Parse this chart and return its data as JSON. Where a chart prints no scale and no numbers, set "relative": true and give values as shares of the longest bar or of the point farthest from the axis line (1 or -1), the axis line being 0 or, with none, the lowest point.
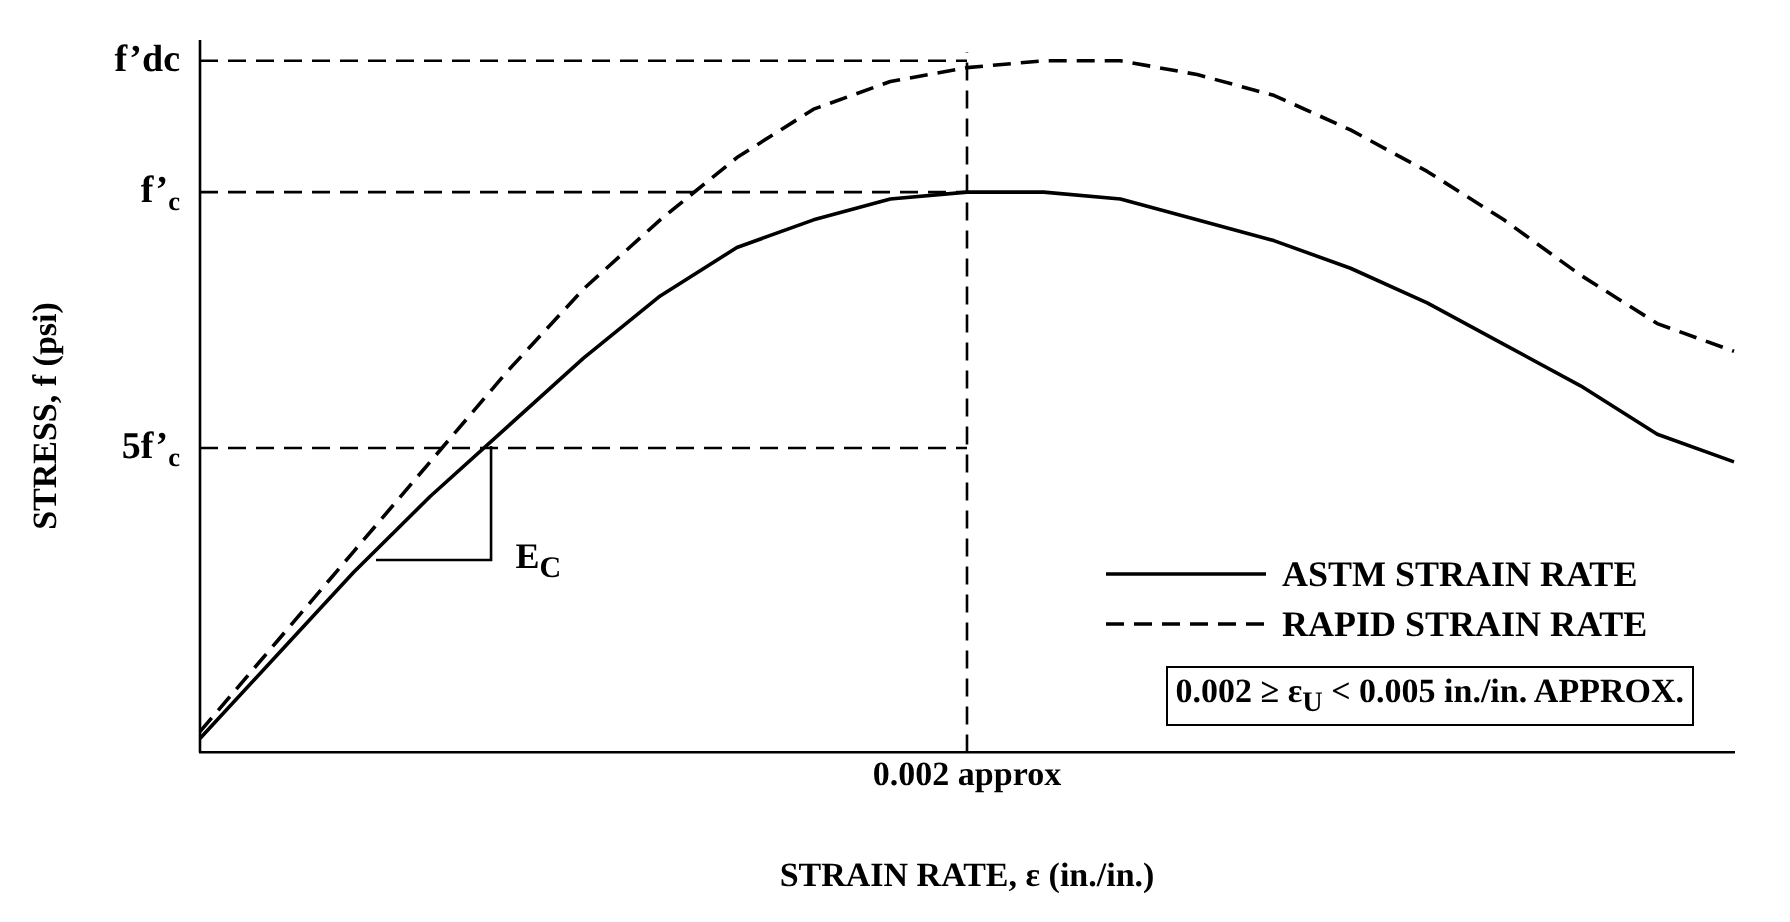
{
  "chart_data": {
    "type": "line",
    "xlabel": "STRAIN RATE, ε (in./in.)",
    "ylabel": "STRESS, f (psi)",
    "categories": [
      null,
      null,
      null,
      null,
      null,
      null,
      null,
      null,
      null,
      null,
      null,
      null,
      null,
      null,
      null,
      null,
      null,
      null,
      null,
      null,
      null
    ],
    "relative": true,
    "series": [
      {
        "name": "ASTM STRAIN RATE",
        "color": "#000000",
        "line_style": "solid",
        "values": [
          0.02,
          0.14,
          0.26,
          0.37,
          0.47,
          0.57,
          0.66,
          0.73,
          0.77,
          0.8,
          0.81,
          0.81,
          0.8,
          0.77,
          0.74,
          0.7,
          0.65,
          0.59,
          0.53,
          0.46,
          0.42
        ]
      },
      {
        "name": "RAPID STRAIN RATE",
        "color": "#000000",
        "line_style": "dashed",
        "values": [
          0.03,
          0.16,
          0.29,
          0.42,
          0.55,
          0.67,
          0.77,
          0.86,
          0.93,
          0.97,
          0.99,
          1,
          1,
          0.98,
          0.95,
          0.9,
          0.84,
          0.77,
          0.69,
          0.62,
          0.58
        ]
      }
    ],
    "ref_lines": [
      {
        "axis": "y",
        "value": 1,
        "label": "f’dc",
        "line_style": "dashed"
      },
      {
        "axis": "y",
        "value": 0.81,
        "label": "f’$_{c}$",
        "line_style": "dashed"
      },
      {
        "axis": "y",
        "value": 0.44,
        "label": "5f’$_{c}$",
        "line_style": "dashed"
      }
    ],
    "annotations": [
      "0.002 approx",
      "E$_{C}$",
      "0.002 ≥ ε$_{U}$ < 0.005 in./in. APPROX."
    ],
    "legend": "bottom right",
    "grid": false,
    "marker": "none"
  }
}
